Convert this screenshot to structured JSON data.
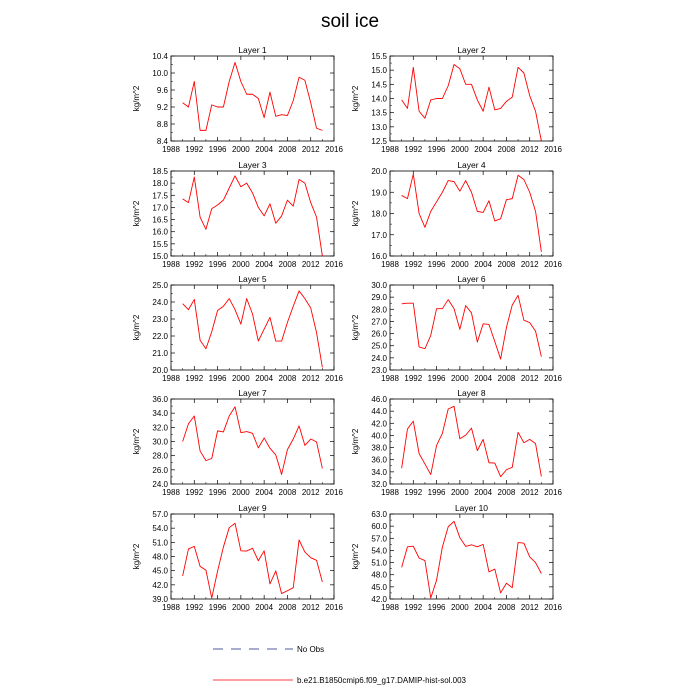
{
  "figure_title": "soil ice",
  "legend": {
    "obs_label": "No Obs",
    "model_label": "b.e21.B1850cmip6.f09_g17.DAMIP-hist-sol.003",
    "obs_color": "#1a237e",
    "model_color": "#ff0000"
  },
  "colors": {
    "series": "#ff0000",
    "axes": "#000000"
  },
  "chart_data": [
    {
      "type": "line",
      "title": "Layer 1",
      "ylabel": "kg/m^2",
      "xlim": [
        1988,
        2016
      ],
      "ylim": [
        8.4,
        10.4
      ],
      "xticks": [
        1988,
        1992,
        1996,
        2000,
        2004,
        2008,
        2012,
        2016
      ],
      "yticks": [
        "8.4",
        "8.8",
        "9.2",
        "9.6",
        "10.0",
        "10.4"
      ],
      "x": [
        1990,
        1991,
        1992,
        1993,
        1994,
        1995,
        1996,
        1997,
        1998,
        1999,
        2000,
        2001,
        2002,
        2003,
        2004,
        2005,
        2006,
        2007,
        2008,
        2009,
        2010,
        2011,
        2012,
        2013,
        2014
      ],
      "series": [
        {
          "values": [
            9.3,
            9.2,
            9.8,
            8.65,
            8.65,
            9.25,
            9.2,
            9.2,
            9.8,
            10.25,
            9.8,
            9.5,
            9.5,
            9.4,
            8.95,
            9.55,
            8.98,
            9.02,
            9.0,
            9.35,
            9.9,
            9.83,
            9.3,
            8.7,
            8.65
          ]
        }
      ]
    },
    {
      "type": "line",
      "title": "Layer 2",
      "ylabel": "kg/m^2",
      "xlim": [
        1988,
        2016
      ],
      "ylim": [
        12.5,
        15.5
      ],
      "xticks": [
        1988,
        1992,
        1996,
        2000,
        2004,
        2008,
        2012,
        2016
      ],
      "yticks": [
        "12.5",
        "13.0",
        "13.5",
        "14.0",
        "14.5",
        "15.0",
        "15.5"
      ],
      "x": [
        1990,
        1991,
        1992,
        1993,
        1994,
        1995,
        1996,
        1997,
        1998,
        1999,
        2000,
        2001,
        2002,
        2003,
        2004,
        2005,
        2006,
        2007,
        2008,
        2009,
        2010,
        2011,
        2012,
        2013,
        2014
      ],
      "series": [
        {
          "values": [
            13.95,
            13.65,
            15.1,
            13.55,
            13.3,
            13.95,
            14.0,
            14.0,
            14.45,
            15.2,
            15.05,
            14.5,
            14.5,
            13.95,
            13.55,
            14.4,
            13.6,
            13.65,
            13.9,
            14.05,
            15.1,
            14.9,
            14.1,
            13.55,
            12.5
          ]
        }
      ]
    },
    {
      "type": "line",
      "title": "Layer 3",
      "ylabel": "kg/m^2",
      "xlim": [
        1988,
        2016
      ],
      "ylim": [
        15.0,
        18.5
      ],
      "xticks": [
        1988,
        1992,
        1996,
        2000,
        2004,
        2008,
        2012,
        2016
      ],
      "yticks": [
        "15.0",
        "15.5",
        "16.0",
        "16.5",
        "17.0",
        "17.5",
        "18.0",
        "18.5"
      ],
      "x": [
        1990,
        1991,
        1992,
        1993,
        1994,
        1995,
        1996,
        1997,
        1998,
        1999,
        2000,
        2001,
        2002,
        2003,
        2004,
        2005,
        2006,
        2007,
        2008,
        2009,
        2010,
        2011,
        2012,
        2013,
        2014
      ],
      "series": [
        {
          "values": [
            17.35,
            17.2,
            18.25,
            16.6,
            16.1,
            16.95,
            17.1,
            17.3,
            17.8,
            18.3,
            17.85,
            18.0,
            17.6,
            17.0,
            16.65,
            17.15,
            16.35,
            16.65,
            17.3,
            17.05,
            18.15,
            18.0,
            17.2,
            16.6,
            15.0
          ]
        }
      ]
    },
    {
      "type": "line",
      "title": "Layer 4",
      "ylabel": "kg/m^2",
      "xlim": [
        1988,
        2016
      ],
      "ylim": [
        16.0,
        20.0
      ],
      "xticks": [
        1988,
        1992,
        1996,
        2000,
        2004,
        2008,
        2012,
        2016
      ],
      "yticks": [
        "16.0",
        "17.0",
        "18.0",
        "19.0",
        "20.0"
      ],
      "x": [
        1990,
        1991,
        1992,
        1993,
        1994,
        1995,
        1996,
        1997,
        1998,
        1999,
        2000,
        2001,
        2002,
        2003,
        2004,
        2005,
        2006,
        2007,
        2008,
        2009,
        2010,
        2011,
        2012,
        2013,
        2014
      ],
      "series": [
        {
          "values": [
            18.85,
            18.7,
            19.85,
            18.0,
            17.35,
            18.1,
            18.55,
            19.0,
            19.55,
            19.5,
            19.05,
            19.55,
            19.0,
            18.1,
            18.05,
            18.6,
            17.65,
            17.75,
            18.65,
            18.7,
            19.8,
            19.6,
            19.0,
            18.1,
            16.2
          ]
        }
      ]
    },
    {
      "type": "line",
      "title": "Layer 5",
      "ylabel": "kg/m^2",
      "xlim": [
        1988,
        2016
      ],
      "ylim": [
        20.0,
        25.0
      ],
      "xticks": [
        1988,
        1992,
        1996,
        2000,
        2004,
        2008,
        2012,
        2016
      ],
      "yticks": [
        "20.0",
        "21.0",
        "22.0",
        "23.0",
        "24.0",
        "25.0"
      ],
      "x": [
        1990,
        1991,
        1992,
        1993,
        1994,
        1995,
        1996,
        1997,
        1998,
        1999,
        2000,
        2001,
        2002,
        2003,
        2004,
        2005,
        2006,
        2007,
        2008,
        2009,
        2010,
        2011,
        2012,
        2013,
        2014
      ],
      "series": [
        {
          "values": [
            23.9,
            23.55,
            24.15,
            21.75,
            21.25,
            22.25,
            23.5,
            23.75,
            24.2,
            23.55,
            22.7,
            24.2,
            23.3,
            21.7,
            22.4,
            23.1,
            21.7,
            21.7,
            22.8,
            23.75,
            24.65,
            24.2,
            23.65,
            22.2,
            20.15
          ]
        }
      ]
    },
    {
      "type": "line",
      "title": "Layer 6",
      "ylabel": "kg/m^2",
      "xlim": [
        1988,
        2016
      ],
      "ylim": [
        23.0,
        30.0
      ],
      "xticks": [
        1988,
        1992,
        1996,
        2000,
        2004,
        2008,
        2012,
        2016
      ],
      "yticks": [
        "23.0",
        "24.0",
        "25.0",
        "26.0",
        "27.0",
        "28.0",
        "29.0",
        "30.0"
      ],
      "x": [
        1990,
        1991,
        1992,
        1993,
        1994,
        1995,
        1996,
        1997,
        1998,
        1999,
        2000,
        2001,
        2002,
        2003,
        2004,
        2005,
        2006,
        2007,
        2008,
        2009,
        2010,
        2011,
        2012,
        2013,
        2014
      ],
      "series": [
        {
          "values": [
            28.45,
            28.5,
            28.5,
            24.9,
            24.75,
            25.85,
            28.05,
            28.05,
            28.8,
            28.05,
            26.35,
            28.3,
            27.7,
            25.3,
            26.8,
            26.75,
            25.35,
            23.9,
            26.5,
            28.35,
            29.15,
            27.1,
            26.9,
            26.2,
            24.1
          ]
        }
      ]
    },
    {
      "type": "line",
      "title": "Layer 7",
      "ylabel": "kg/m^2",
      "xlim": [
        1988,
        2016
      ],
      "ylim": [
        24.0,
        36.0
      ],
      "xticks": [
        1988,
        1992,
        1996,
        2000,
        2004,
        2008,
        2012,
        2016
      ],
      "yticks": [
        "24.0",
        "26.0",
        "28.0",
        "30.0",
        "32.0",
        "34.0",
        "36.0"
      ],
      "x": [
        1990,
        1991,
        1992,
        1993,
        1994,
        1995,
        1996,
        1997,
        1998,
        1999,
        2000,
        2001,
        2002,
        2003,
        2004,
        2005,
        2006,
        2007,
        2008,
        2009,
        2010,
        2011,
        2012,
        2013,
        2014
      ],
      "series": [
        {
          "values": [
            30.0,
            32.5,
            33.6,
            28.65,
            27.3,
            27.6,
            31.5,
            31.35,
            33.6,
            34.9,
            31.25,
            31.4,
            31.15,
            29.1,
            30.5,
            29.05,
            28.1,
            25.35,
            28.85,
            30.35,
            32.2,
            29.45,
            30.35,
            29.95,
            26.2
          ]
        }
      ]
    },
    {
      "type": "line",
      "title": "Layer 8",
      "ylabel": "kg/m^2",
      "xlim": [
        1988,
        2016
      ],
      "ylim": [
        32.0,
        46.0
      ],
      "xticks": [
        1988,
        1992,
        1996,
        2000,
        2004,
        2008,
        2012,
        2016
      ],
      "yticks": [
        "32.0",
        "34.0",
        "36.0",
        "38.0",
        "40.0",
        "42.0",
        "44.0",
        "46.0"
      ],
      "x": [
        1990,
        1991,
        1992,
        1993,
        1994,
        1995,
        1996,
        1997,
        1998,
        1999,
        2000,
        2001,
        2002,
        2003,
        2004,
        2005,
        2006,
        2007,
        2008,
        2009,
        2010,
        2011,
        2012,
        2013,
        2014
      ],
      "series": [
        {
          "values": [
            34.6,
            41.05,
            42.35,
            37.0,
            35.3,
            33.55,
            38.35,
            40.35,
            44.35,
            44.8,
            39.45,
            40.05,
            41.2,
            37.5,
            39.35,
            35.5,
            35.45,
            33.2,
            34.35,
            34.75,
            40.5,
            38.8,
            39.35,
            38.65,
            33.25
          ]
        }
      ]
    },
    {
      "type": "line",
      "title": "Layer 9",
      "ylabel": "kg/m^2",
      "xlim": [
        1988,
        2016
      ],
      "ylim": [
        39.0,
        57.0
      ],
      "xticks": [
        1988,
        1992,
        1996,
        2000,
        2004,
        2008,
        2012,
        2016
      ],
      "yticks": [
        "39.0",
        "42.0",
        "45.0",
        "48.0",
        "51.0",
        "54.0",
        "57.0"
      ],
      "x": [
        1990,
        1991,
        1992,
        1993,
        1994,
        1995,
        1996,
        1997,
        1998,
        1999,
        2000,
        2001,
        2002,
        2003,
        2004,
        2005,
        2006,
        2007,
        2008,
        2009,
        2010,
        2011,
        2012,
        2013,
        2014
      ],
      "series": [
        {
          "values": [
            43.9,
            49.6,
            50.15,
            45.9,
            45.1,
            39.2,
            44.9,
            50.0,
            54.1,
            55.05,
            49.2,
            49.15,
            49.75,
            47.1,
            49.2,
            42.2,
            44.95,
            40.15,
            40.75,
            41.4,
            51.5,
            48.95,
            47.75,
            47.2,
            42.6
          ]
        }
      ]
    },
    {
      "type": "line",
      "title": "Layer 10",
      "ylabel": "kg/m^2",
      "xlim": [
        1988,
        2016
      ],
      "ylim": [
        42.0,
        63.0
      ],
      "xticks": [
        1988,
        1992,
        1996,
        2000,
        2004,
        2008,
        2012,
        2016
      ],
      "yticks": [
        "42.0",
        "45.0",
        "48.0",
        "51.0",
        "54.0",
        "57.0",
        "60.0",
        "63.0"
      ],
      "x": [
        1990,
        1991,
        1992,
        1993,
        1994,
        1995,
        1996,
        1997,
        1998,
        1999,
        2000,
        2001,
        2002,
        2003,
        2004,
        2005,
        2006,
        2007,
        2008,
        2009,
        2010,
        2011,
        2012,
        2013,
        2014
      ],
      "series": [
        {
          "values": [
            49.8,
            54.9,
            55.05,
            52.1,
            51.5,
            42.25,
            46.65,
            54.85,
            59.85,
            61.2,
            57.15,
            55.0,
            55.4,
            54.9,
            55.5,
            48.7,
            49.4,
            43.5,
            45.9,
            44.8,
            55.95,
            55.8,
            52.4,
            51.0,
            48.3
          ]
        }
      ]
    }
  ]
}
